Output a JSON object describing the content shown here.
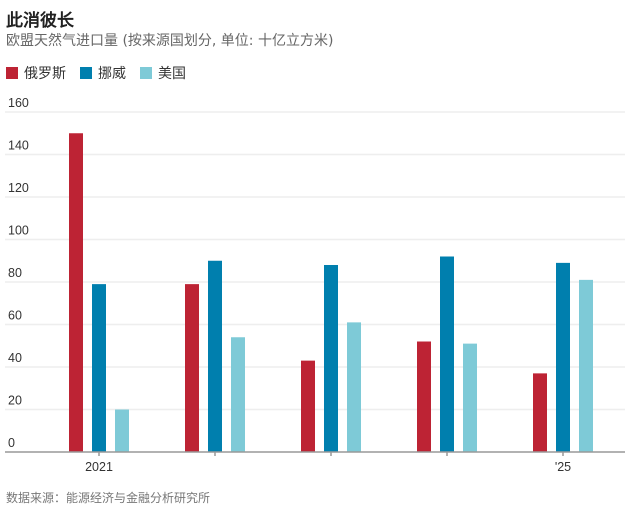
{
  "title": "此消彼长",
  "subtitle": "欧盟天然气进口量 (按来源国划分, 单位: 十亿立方米)",
  "source": "数据来源：能源经济与金融分析研究所",
  "chart_data": {
    "type": "bar",
    "title": "此消彼长",
    "categories": [
      "2021",
      "",
      "",
      "",
      "'25"
    ],
    "series": [
      {
        "name": "俄罗斯",
        "color": "#bd2334",
        "values": [
          150,
          79,
          43,
          52,
          37
        ]
      },
      {
        "name": "挪威",
        "color": "#007fae",
        "values": [
          79,
          90,
          88,
          92,
          89
        ]
      },
      {
        "name": "美国",
        "color": "#7ecad7",
        "values": [
          20,
          54,
          61,
          51,
          81
        ]
      }
    ],
    "ylim": [
      0,
      160
    ],
    "yticks": [
      0,
      20,
      40,
      60,
      80,
      100,
      120,
      140,
      160
    ],
    "grid": true,
    "legend": "top-left"
  }
}
